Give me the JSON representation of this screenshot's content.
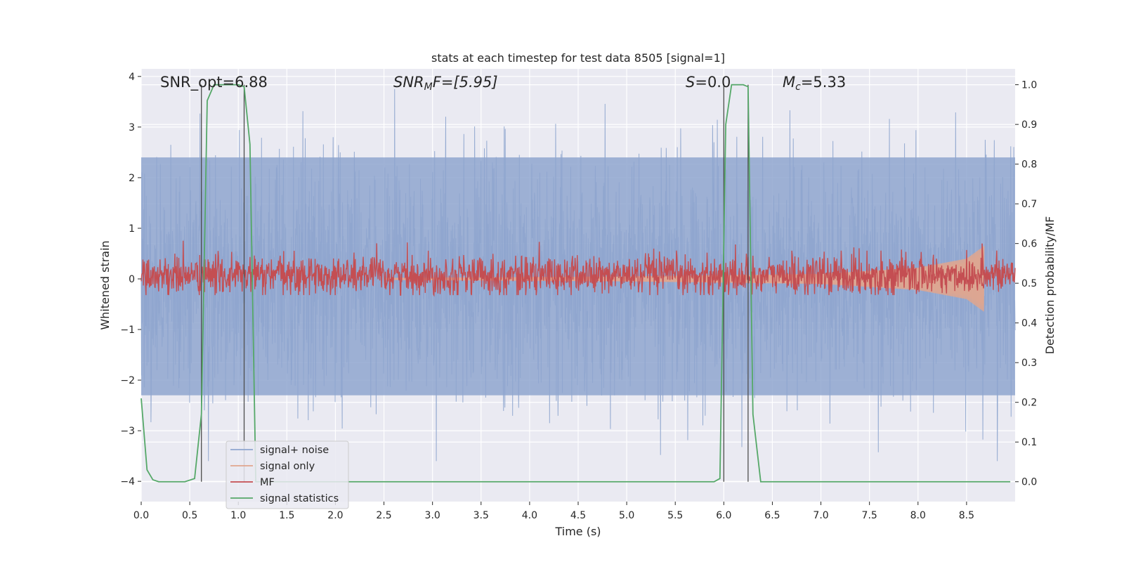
{
  "chart_data": {
    "type": "line",
    "title": "stats at each timestep for test data 8505 [signal=1]",
    "xlabel": "Time (s)",
    "ylabel": "Whitened strain",
    "y2label": "Detection probability/MF",
    "xlim": [
      0.0,
      9.0
    ],
    "ylim": [
      -4.4,
      4.15
    ],
    "y2lim": [
      -0.05,
      1.04
    ],
    "xticks": [
      "0.0",
      "0.5",
      "1.0",
      "1.5",
      "2.0",
      "2.5",
      "3.0",
      "3.5",
      "4.0",
      "4.5",
      "5.0",
      "5.5",
      "6.0",
      "6.5",
      "7.0",
      "7.5",
      "8.0",
      "8.5"
    ],
    "yticks": [
      "−4",
      "−3",
      "−2",
      "−1",
      "0",
      "1",
      "2",
      "3",
      "4"
    ],
    "y2ticks": [
      "0.0",
      "0.1",
      "0.2",
      "0.3",
      "0.4",
      "0.5",
      "0.6",
      "0.7",
      "0.8",
      "0.9",
      "1.0"
    ],
    "grid": true,
    "legend_position": "lower-left",
    "annotations": {
      "snr_opt": "SNR_opt=6.88",
      "snr_mf_main": "SNR",
      "snr_mf_sub": "M",
      "snr_mf_rest": "F=[5.95]",
      "s_main": "S",
      "s_rest": "=0.0",
      "mc_main": "M",
      "mc_sub": "c",
      "mc_rest": "=5.33"
    },
    "vlines": [
      0.62,
      1.06,
      6.0,
      6.25
    ],
    "series": [
      {
        "name": "signal+ noise",
        "color": "#8fa6cf",
        "axis": "left",
        "style": "noise",
        "envelope_pos": 2.4,
        "envelope_neg": -2.3,
        "x_range": [
          0.0,
          9.0
        ]
      },
      {
        "name": "signal only",
        "color": "#e0a58e",
        "axis": "left",
        "style": "chirp",
        "x_range": [
          2.5,
          8.68
        ],
        "amp_points": [
          [
            2.5,
            0.02
          ],
          [
            5.0,
            0.05
          ],
          [
            7.0,
            0.1
          ],
          [
            8.0,
            0.22
          ],
          [
            8.5,
            0.4
          ],
          [
            8.68,
            0.65
          ]
        ]
      },
      {
        "name": "MF",
        "color": "#c44e52",
        "axis": "right",
        "style": "mf",
        "baseline": 0.52,
        "spread": 0.045,
        "x_range": [
          0.0,
          9.0
        ],
        "spike": {
          "x": 8.66,
          "y": 0.6
        }
      },
      {
        "name": "signal statistics",
        "color": "#55a868",
        "axis": "right",
        "style": "line",
        "x": [
          0.0,
          0.06,
          0.12,
          0.18,
          0.3,
          0.45,
          0.55,
          0.62,
          0.68,
          0.75,
          0.85,
          1.0,
          1.06,
          1.12,
          1.18,
          5.9,
          5.96,
          6.02,
          6.08,
          6.2,
          6.25,
          6.3,
          6.38,
          8.95
        ],
        "y": [
          0.21,
          0.03,
          0.005,
          0.0,
          0.0,
          0.0,
          0.008,
          0.17,
          0.96,
          1.0,
          1.0,
          1.0,
          0.995,
          0.85,
          0.0,
          0.0,
          0.008,
          0.9,
          1.0,
          1.0,
          0.995,
          0.17,
          0.0,
          0.0
        ]
      }
    ]
  }
}
